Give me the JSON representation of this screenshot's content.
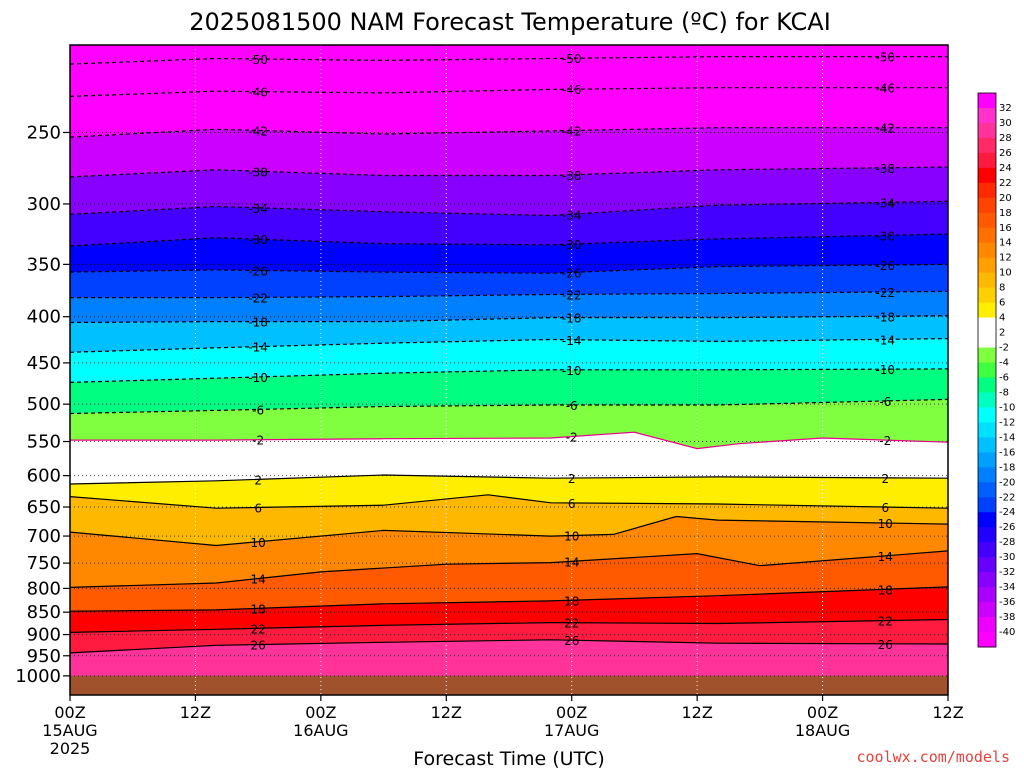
{
  "chart_data": {
    "type": "heatmap",
    "title": "2025081500 NAM Forecast Temperature (ºC) for KCAI",
    "xlabel": "Forecast Time (UTC)",
    "ylabel": "",
    "credit": "coolwx.com/models",
    "x_ticks": [
      {
        "hour": 0,
        "label": "00Z",
        "sub": "15AUG",
        "sub2": "2025"
      },
      {
        "hour": 12,
        "label": "12Z",
        "sub": "",
        "sub2": ""
      },
      {
        "hour": 24,
        "label": "00Z",
        "sub": "16AUG",
        "sub2": ""
      },
      {
        "hour": 36,
        "label": "12Z",
        "sub": "",
        "sub2": ""
      },
      {
        "hour": 48,
        "label": "00Z",
        "sub": "17AUG",
        "sub2": ""
      },
      {
        "hour": 60,
        "label": "12Z",
        "sub": "",
        "sub2": ""
      },
      {
        "hour": 72,
        "label": "00Z",
        "sub": "18AUG",
        "sub2": ""
      },
      {
        "hour": 84,
        "label": "12Z",
        "sub": "",
        "sub2": ""
      }
    ],
    "xlim": [
      0,
      84
    ],
    "y_ticks": [
      250,
      300,
      350,
      400,
      450,
      500,
      550,
      600,
      650,
      700,
      750,
      800,
      850,
      900,
      950,
      1000
    ],
    "ylim": [
      1050,
      200
    ],
    "y_scale": "log",
    "colorbar": {
      "labels": [
        32,
        30,
        28,
        26,
        24,
        22,
        20,
        18,
        16,
        14,
        12,
        10,
        8,
        6,
        4,
        2,
        -2,
        -4,
        -6,
        -8,
        -10,
        -12,
        -14,
        -16,
        -18,
        -20,
        -22,
        -24,
        -26,
        -28,
        -30,
        -32,
        -34,
        -36,
        -38,
        -40
      ],
      "colors": [
        "#ff00ff",
        "#ff33cc",
        "#ff3399",
        "#ff2a66",
        "#ff1a40",
        "#ff0000",
        "#ff2a00",
        "#ff4400",
        "#ff5a00",
        "#ff7000",
        "#ff8800",
        "#ffa000",
        "#ffb800",
        "#ffd000",
        "#ffee00",
        "#ffffff",
        "#ffffff",
        "#80ff40",
        "#40ff40",
        "#00ff80",
        "#00ffbf",
        "#00ffff",
        "#00e0ff",
        "#00c0ff",
        "#00a0ff",
        "#0080ff",
        "#0060ff",
        "#0040ff",
        "#0000ff",
        "#2200ff",
        "#4400ff",
        "#6600ff",
        "#8800ff",
        "#aa00ff",
        "#cc00ff",
        "#ee00ff",
        "#ff00ff"
      ]
    },
    "series": [
      {
        "level": -50,
        "points": [
          [
            0,
            210
          ],
          [
            14,
            207
          ],
          [
            30,
            208
          ],
          [
            46,
            207
          ],
          [
            62,
            206
          ],
          [
            84,
            206
          ]
        ]
      },
      {
        "level": -46,
        "points": [
          [
            0,
            228
          ],
          [
            14,
            225
          ],
          [
            30,
            226
          ],
          [
            46,
            224
          ],
          [
            62,
            223
          ],
          [
            84,
            223
          ]
        ]
      },
      {
        "level": -42,
        "points": [
          [
            0,
            253
          ],
          [
            14,
            248
          ],
          [
            30,
            251
          ],
          [
            46,
            249
          ],
          [
            62,
            247
          ],
          [
            84,
            247
          ]
        ]
      },
      {
        "level": -38,
        "points": [
          [
            0,
            280
          ],
          [
            14,
            275
          ],
          [
            30,
            279
          ],
          [
            46,
            279
          ],
          [
            62,
            275
          ],
          [
            84,
            273
          ]
        ]
      },
      {
        "level": -34,
        "points": [
          [
            0,
            308
          ],
          [
            14,
            302
          ],
          [
            30,
            306
          ],
          [
            46,
            309
          ],
          [
            62,
            301
          ],
          [
            84,
            298
          ]
        ]
      },
      {
        "level": -30,
        "points": [
          [
            0,
            334
          ],
          [
            14,
            327
          ],
          [
            30,
            332
          ],
          [
            46,
            333
          ],
          [
            62,
            328
          ],
          [
            84,
            324
          ]
        ]
      },
      {
        "level": -26,
        "points": [
          [
            0,
            357
          ],
          [
            14,
            355
          ],
          [
            30,
            357
          ],
          [
            46,
            358
          ],
          [
            62,
            352
          ],
          [
            84,
            350
          ]
        ]
      },
      {
        "level": -22,
        "points": [
          [
            0,
            381
          ],
          [
            14,
            381
          ],
          [
            30,
            380
          ],
          [
            46,
            378
          ],
          [
            62,
            377
          ],
          [
            84,
            375
          ]
        ]
      },
      {
        "level": -18,
        "points": [
          [
            0,
            406
          ],
          [
            14,
            405
          ],
          [
            30,
            405
          ],
          [
            46,
            401
          ],
          [
            62,
            401
          ],
          [
            84,
            399
          ]
        ]
      },
      {
        "level": -14,
        "points": [
          [
            0,
            438
          ],
          [
            14,
            433
          ],
          [
            30,
            428
          ],
          [
            46,
            424
          ],
          [
            62,
            426
          ],
          [
            84,
            423
          ]
        ]
      },
      {
        "level": -10,
        "points": [
          [
            0,
            473
          ],
          [
            14,
            468
          ],
          [
            30,
            462
          ],
          [
            46,
            458
          ],
          [
            62,
            458
          ],
          [
            84,
            457
          ]
        ]
      },
      {
        "level": -6,
        "points": [
          [
            0,
            512
          ],
          [
            14,
            508
          ],
          [
            30,
            503
          ],
          [
            46,
            501
          ],
          [
            62,
            501
          ],
          [
            84,
            494
          ]
        ]
      },
      {
        "level": -2,
        "points": [
          [
            0,
            548
          ],
          [
            14,
            548
          ],
          [
            30,
            546
          ],
          [
            46,
            545
          ],
          [
            54,
            537
          ],
          [
            60,
            560
          ],
          [
            64,
            553
          ],
          [
            72,
            545
          ],
          [
            84,
            551
          ]
        ]
      },
      {
        "level": 2,
        "points": [
          [
            0,
            613
          ],
          [
            14,
            608
          ],
          [
            30,
            599
          ],
          [
            46,
            604
          ],
          [
            62,
            602
          ],
          [
            84,
            604
          ]
        ]
      },
      {
        "level": 6,
        "points": [
          [
            0,
            633
          ],
          [
            14,
            652
          ],
          [
            30,
            647
          ],
          [
            40,
            630
          ],
          [
            46,
            643
          ],
          [
            62,
            645
          ],
          [
            84,
            652
          ]
        ]
      },
      {
        "level": 10,
        "points": [
          [
            0,
            693
          ],
          [
            14,
            717
          ],
          [
            30,
            690
          ],
          [
            46,
            700
          ],
          [
            52,
            697
          ],
          [
            58,
            666
          ],
          [
            62,
            672
          ],
          [
            84,
            679
          ]
        ]
      },
      {
        "level": 14,
        "points": [
          [
            0,
            798
          ],
          [
            14,
            789
          ],
          [
            24,
            767
          ],
          [
            36,
            752
          ],
          [
            46,
            749
          ],
          [
            60,
            732
          ],
          [
            66,
            755
          ],
          [
            84,
            727
          ]
        ]
      },
      {
        "level": 18,
        "points": [
          [
            0,
            848
          ],
          [
            14,
            845
          ],
          [
            30,
            832
          ],
          [
            46,
            826
          ],
          [
            62,
            815
          ],
          [
            84,
            797
          ]
        ]
      },
      {
        "level": 22,
        "points": [
          [
            0,
            895
          ],
          [
            14,
            888
          ],
          [
            30,
            879
          ],
          [
            46,
            873
          ],
          [
            62,
            875
          ],
          [
            84,
            866
          ]
        ]
      },
      {
        "level": 26,
        "points": [
          [
            0,
            943
          ],
          [
            14,
            925
          ],
          [
            30,
            918
          ],
          [
            46,
            912
          ],
          [
            62,
            920
          ],
          [
            84,
            922
          ]
        ]
      }
    ],
    "grid": true,
    "ground": "1000"
  }
}
